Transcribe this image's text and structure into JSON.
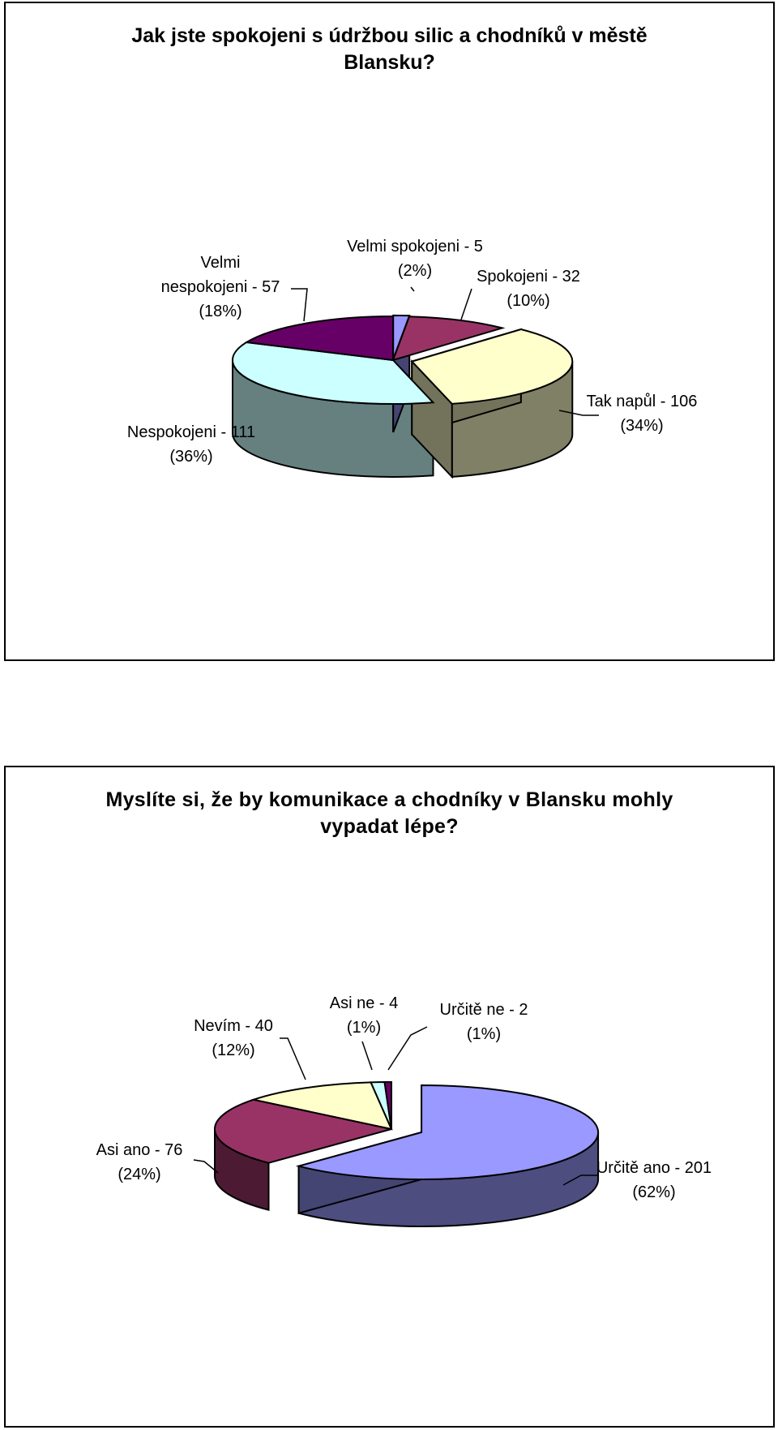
{
  "chart_data": [
    {
      "type": "pie",
      "title_lines": [
        "Jak jste spokojeni s údržbou silic a chodníků v městě",
        "Blansku?"
      ],
      "slices": [
        {
          "category": "Velmi spokojeni",
          "value": 5,
          "percent": 2,
          "color": "#9999ff",
          "label_lines": [
            "Velmi spokojeni - 5",
            "(2%)"
          ]
        },
        {
          "category": "Spokojeni",
          "value": 32,
          "percent": 10,
          "color": "#993366",
          "label_lines": [
            "Spokojeni - 32",
            "(10%)"
          ]
        },
        {
          "category": "Tak napůl",
          "value": 106,
          "percent": 34,
          "color": "#ffffcc",
          "label_lines": [
            "Tak napůl - 106",
            "(34%)"
          ]
        },
        {
          "category": "Nespokojeni",
          "value": 111,
          "percent": 36,
          "color": "#ccffff",
          "label_lines": [
            "Nespokojeni - 111",
            "(36%)"
          ]
        },
        {
          "category": "Velmi nespokojeni",
          "value": 57,
          "percent": 18,
          "color": "#660066",
          "label_lines": [
            "Velmi",
            "nespokojeni - 57",
            "(18%)"
          ]
        }
      ]
    },
    {
      "type": "pie",
      "title_lines": [
        "Myslíte si, že by komunikace a chodníky v Blansku mohly",
        "vypadat lépe?"
      ],
      "slices": [
        {
          "category": "Určitě ano",
          "value": 201,
          "percent": 62,
          "color": "#9999ff",
          "label_lines": [
            "Určitě ano - 201",
            "(62%)"
          ]
        },
        {
          "category": "Asi ano",
          "value": 76,
          "percent": 24,
          "color": "#993366",
          "label_lines": [
            "Asi ano - 76",
            "(24%)"
          ]
        },
        {
          "category": "Nevím",
          "value": 40,
          "percent": 12,
          "color": "#ffffcc",
          "label_lines": [
            "Nevím - 40",
            "(12%)"
          ]
        },
        {
          "category": "Asi ne",
          "value": 4,
          "percent": 1,
          "color": "#ccffff",
          "label_lines": [
            "Asi ne - 4",
            "(1%)"
          ]
        },
        {
          "category": "Určitě ne",
          "value": 2,
          "percent": 1,
          "color": "#660066",
          "label_lines": [
            "Určitě ne - 2",
            "(1%)"
          ]
        }
      ]
    }
  ]
}
